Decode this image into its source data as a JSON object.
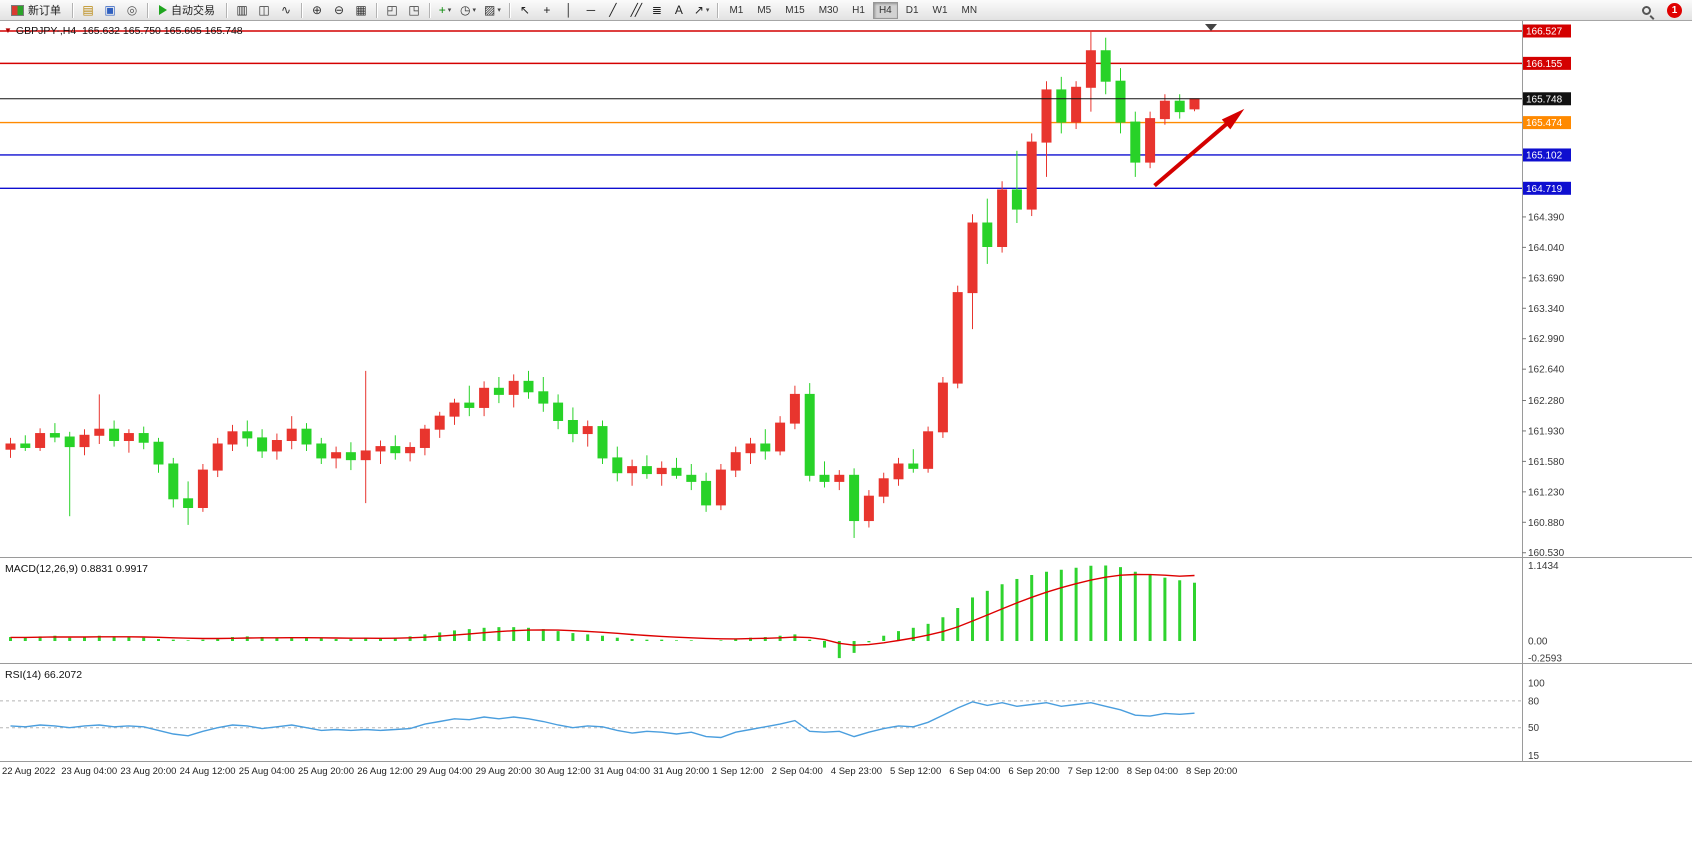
{
  "toolbar": {
    "new_order_label": "新订单",
    "autotrading_label": "自动交易",
    "notification_count": "1",
    "timeframes": [
      "M1",
      "M5",
      "M15",
      "M30",
      "H1",
      "H4",
      "D1",
      "W1",
      "MN"
    ],
    "active_timeframe": "H4",
    "groups": [
      {
        "items": [
          "new-order"
        ]
      },
      {
        "items": [
          "charts",
          "profiles",
          "refresh"
        ]
      },
      {
        "items": [
          "autotrading"
        ]
      },
      {
        "items": [
          "bar-chart",
          "candlestick-chart",
          "line-chart"
        ]
      },
      {
        "items": [
          "zoom-in",
          "zoom-out",
          "tile-windows"
        ]
      },
      {
        "items": [
          "arrange-windows",
          "cascade-windows"
        ]
      },
      {
        "items": [
          "indicators",
          "periods",
          "templates"
        ]
      },
      {
        "items": [
          "cursor",
          "crosshair",
          "vertical-line",
          "horizontal-line",
          "trendline",
          "equidistant-channel",
          "fibonacci",
          "text",
          "arrows"
        ]
      }
    ]
  },
  "chart": {
    "symbol_line": "GBPJPY-,H4  165.632 165.750 165.605 165.748"
  },
  "indicators": {
    "macd_label": "MACD(12,26,9) 0.8831 0.9917",
    "rsi_label": "RSI(14) 66.2072"
  },
  "chart_data": {
    "type": "candlestick",
    "symbol": "GBPJPY",
    "timeframe": "H4",
    "up_color": "#e8352e",
    "down_color": "#28d228",
    "ylim": [
      160.53,
      166.58
    ],
    "grid": false,
    "x_labels": [
      "22 Aug 2022",
      "23 Aug 04:00",
      "23 Aug 20:00",
      "24 Aug 12:00",
      "25 Aug 04:00",
      "25 Aug 20:00",
      "26 Aug 12:00",
      "29 Aug 04:00",
      "29 Aug 20:00",
      "30 Aug 12:00",
      "31 Aug 04:00",
      "31 Aug 20:00",
      "1 Sep 12:00",
      "2 Sep 04:00",
      "4 Sep 23:00",
      "5 Sep 12:00",
      "6 Sep 04:00",
      "6 Sep 20:00",
      "7 Sep 12:00",
      "8 Sep 04:00",
      "8 Sep 20:00"
    ],
    "y_axis_ticks": [
      164.39,
      164.04,
      163.69,
      163.34,
      162.99,
      162.64,
      162.28,
      161.93,
      161.58,
      161.23,
      160.88,
      160.53
    ],
    "levels": [
      {
        "price": 166.527,
        "line": "#d40000"
      },
      {
        "price": 166.155,
        "line": "#d40000"
      },
      {
        "price": 165.748,
        "line": "#111111",
        "current": true
      },
      {
        "price": 165.474,
        "line": "#ff8a00"
      },
      {
        "price": 165.102,
        "line": "#0f0fd0"
      },
      {
        "price": 164.719,
        "line": "#0f0fd0"
      }
    ],
    "candles_ohlc": [
      [
        161.72,
        161.85,
        161.62,
        161.78
      ],
      [
        161.78,
        161.88,
        161.7,
        161.74
      ],
      [
        161.74,
        161.96,
        161.7,
        161.9
      ],
      [
        161.9,
        162.02,
        161.8,
        161.86
      ],
      [
        161.86,
        161.92,
        160.95,
        161.75
      ],
      [
        161.75,
        161.95,
        161.65,
        161.88
      ],
      [
        161.88,
        162.35,
        161.78,
        161.95
      ],
      [
        161.95,
        162.05,
        161.75,
        161.82
      ],
      [
        161.82,
        161.95,
        161.68,
        161.9
      ],
      [
        161.9,
        161.98,
        161.72,
        161.8
      ],
      [
        161.8,
        161.85,
        161.45,
        161.55
      ],
      [
        161.55,
        161.62,
        161.05,
        161.15
      ],
      [
        161.15,
        161.35,
        160.85,
        161.05
      ],
      [
        161.05,
        161.55,
        161.0,
        161.48
      ],
      [
        161.48,
        161.85,
        161.4,
        161.78
      ],
      [
        161.78,
        162.0,
        161.7,
        161.92
      ],
      [
        161.92,
        162.05,
        161.75,
        161.85
      ],
      [
        161.85,
        161.95,
        161.62,
        161.7
      ],
      [
        161.7,
        161.9,
        161.6,
        161.82
      ],
      [
        161.82,
        162.1,
        161.72,
        161.95
      ],
      [
        161.95,
        162.02,
        161.7,
        161.78
      ],
      [
        161.78,
        161.85,
        161.55,
        161.62
      ],
      [
        161.62,
        161.75,
        161.5,
        161.68
      ],
      [
        161.68,
        161.8,
        161.48,
        161.6
      ],
      [
        161.6,
        162.62,
        161.1,
        161.7
      ],
      [
        161.7,
        161.82,
        161.55,
        161.75
      ],
      [
        161.75,
        161.88,
        161.6,
        161.68
      ],
      [
        161.68,
        161.8,
        161.58,
        161.74
      ],
      [
        161.74,
        162.0,
        161.65,
        161.95
      ],
      [
        161.95,
        162.15,
        161.85,
        162.1
      ],
      [
        162.1,
        162.3,
        162.0,
        162.25
      ],
      [
        162.25,
        162.45,
        162.1,
        162.2
      ],
      [
        162.2,
        162.5,
        162.1,
        162.42
      ],
      [
        162.42,
        162.55,
        162.25,
        162.35
      ],
      [
        162.35,
        162.58,
        162.2,
        162.5
      ],
      [
        162.5,
        162.62,
        162.3,
        162.38
      ],
      [
        162.38,
        162.55,
        162.15,
        162.25
      ],
      [
        162.25,
        162.35,
        161.95,
        162.05
      ],
      [
        162.05,
        162.2,
        161.8,
        161.9
      ],
      [
        161.9,
        162.05,
        161.75,
        161.98
      ],
      [
        161.98,
        162.05,
        161.55,
        161.62
      ],
      [
        161.62,
        161.75,
        161.35,
        161.45
      ],
      [
        161.45,
        161.6,
        161.3,
        161.52
      ],
      [
        161.52,
        161.65,
        161.38,
        161.44
      ],
      [
        161.44,
        161.58,
        161.3,
        161.5
      ],
      [
        161.5,
        161.62,
        161.38,
        161.42
      ],
      [
        161.42,
        161.55,
        161.25,
        161.35
      ],
      [
        161.35,
        161.45,
        161.0,
        161.08
      ],
      [
        161.08,
        161.55,
        161.02,
        161.48
      ],
      [
        161.48,
        161.75,
        161.4,
        161.68
      ],
      [
        161.68,
        161.85,
        161.55,
        161.78
      ],
      [
        161.78,
        161.95,
        161.6,
        161.7
      ],
      [
        161.7,
        162.1,
        161.65,
        162.02
      ],
      [
        162.02,
        162.45,
        161.95,
        162.35
      ],
      [
        162.35,
        162.48,
        161.35,
        161.42
      ],
      [
        161.42,
        161.58,
        161.28,
        161.35
      ],
      [
        161.35,
        161.48,
        161.25,
        161.42
      ],
      [
        161.42,
        161.5,
        160.7,
        160.9
      ],
      [
        160.9,
        161.25,
        160.82,
        161.18
      ],
      [
        161.18,
        161.45,
        161.1,
        161.38
      ],
      [
        161.38,
        161.62,
        161.3,
        161.55
      ],
      [
        161.55,
        161.72,
        161.45,
        161.5
      ],
      [
        161.5,
        161.98,
        161.45,
        161.92
      ],
      [
        161.92,
        162.55,
        161.85,
        162.48
      ],
      [
        162.48,
        163.6,
        162.42,
        163.52
      ],
      [
        163.52,
        164.42,
        163.1,
        164.32
      ],
      [
        164.32,
        164.6,
        163.85,
        164.05
      ],
      [
        164.05,
        164.8,
        163.98,
        164.7
      ],
      [
        164.7,
        165.15,
        164.32,
        164.48
      ],
      [
        164.48,
        165.35,
        164.4,
        165.25
      ],
      [
        165.25,
        165.95,
        164.85,
        165.85
      ],
      [
        165.85,
        166.0,
        165.35,
        165.48
      ],
      [
        165.48,
        165.95,
        165.4,
        165.88
      ],
      [
        165.88,
        166.53,
        165.6,
        166.3
      ],
      [
        166.3,
        166.45,
        165.8,
        165.95
      ],
      [
        165.95,
        166.1,
        165.35,
        165.48
      ],
      [
        165.48,
        165.6,
        164.85,
        165.02
      ],
      [
        165.02,
        165.6,
        164.95,
        165.52
      ],
      [
        165.52,
        165.8,
        165.45,
        165.72
      ],
      [
        165.72,
        165.8,
        165.52,
        165.6
      ],
      [
        165.632,
        165.75,
        165.605,
        165.748
      ]
    ],
    "subcharts": [
      {
        "type": "macd-histogram",
        "label": "MACD(12,26,9)",
        "value": 0.8831,
        "signal_value": 0.9917,
        "histogram_color": "#2fd32f",
        "signal_color": "#dd0000",
        "scale_labels": [
          "1.1434",
          "0.00",
          "-0.2593"
        ],
        "values": [
          0.06,
          0.05,
          0.07,
          0.08,
          0.05,
          0.06,
          0.08,
          0.07,
          0.06,
          0.05,
          0.03,
          0.02,
          0.01,
          0.02,
          0.04,
          0.06,
          0.07,
          0.06,
          0.05,
          0.06,
          0.05,
          0.04,
          0.03,
          0.03,
          0.04,
          0.04,
          0.05,
          0.07,
          0.1,
          0.13,
          0.16,
          0.18,
          0.2,
          0.21,
          0.21,
          0.2,
          0.18,
          0.15,
          0.12,
          0.1,
          0.08,
          0.05,
          0.03,
          0.02,
          0.02,
          0.01,
          0.01,
          0.0,
          0.01,
          0.03,
          0.05,
          0.06,
          0.08,
          0.1,
          0.02,
          -0.1,
          -0.2593,
          -0.18,
          -0.02,
          0.08,
          0.15,
          0.2,
          0.26,
          0.36,
          0.5,
          0.66,
          0.76,
          0.86,
          0.94,
          1.0,
          1.05,
          1.08,
          1.11,
          1.14,
          1.1434,
          1.12,
          1.05,
          1.0,
          0.96,
          0.92,
          0.8831
        ],
        "signal": [
          0.055,
          0.055,
          0.058,
          0.062,
          0.06,
          0.06,
          0.063,
          0.064,
          0.063,
          0.061,
          0.056,
          0.049,
          0.042,
          0.038,
          0.038,
          0.041,
          0.046,
          0.048,
          0.048,
          0.05,
          0.05,
          0.048,
          0.045,
          0.042,
          0.042,
          0.041,
          0.043,
          0.048,
          0.058,
          0.072,
          0.09,
          0.108,
          0.126,
          0.143,
          0.156,
          0.165,
          0.168,
          0.165,
          0.156,
          0.145,
          0.132,
          0.116,
          0.099,
          0.083,
          0.07,
          0.058,
          0.048,
          0.039,
          0.033,
          0.032,
          0.036,
          0.041,
          0.049,
          0.059,
          0.051,
          0.021,
          -0.035,
          -0.064,
          -0.055,
          -0.028,
          0.008,
          0.046,
          0.089,
          0.143,
          0.214,
          0.303,
          0.394,
          0.487,
          0.578,
          0.662,
          0.74,
          0.808,
          0.868,
          0.922,
          0.9667,
          0.9974,
          1.0079,
          1.0063,
          0.997,
          0.9816,
          0.9917
        ]
      },
      {
        "type": "line",
        "label": "RSI(14)",
        "value": 66.2072,
        "line_color": "#4a9ede",
        "levels": [
          80,
          50
        ],
        "scale_labels": [
          "100",
          "80",
          "50",
          "15"
        ],
        "values": [
          52,
          51,
          53,
          52,
          50,
          52,
          53,
          51,
          52,
          51,
          47,
          43,
          41,
          46,
          50,
          53,
          52,
          49,
          51,
          53,
          50,
          47,
          48,
          47,
          48,
          47,
          48,
          49,
          54,
          57,
          60,
          59,
          62,
          60,
          62,
          60,
          57,
          53,
          50,
          52,
          51,
          47,
          44,
          46,
          45,
          43,
          45,
          40,
          39,
          45,
          48,
          51,
          54,
          58,
          46,
          45,
          46,
          40,
          45,
          49,
          52,
          51,
          56,
          64,
          72,
          79,
          75,
          78,
          74,
          76,
          78,
          74,
          76,
          78,
          74,
          70,
          64,
          63,
          66,
          65,
          66.2
        ]
      }
    ],
    "annotations": [
      {
        "type": "arrow",
        "from": {
          "bar": 77.3,
          "price": 164.75
        },
        "to": {
          "bar": 82.8,
          "price": 165.55
        },
        "color": "#d40000"
      }
    ]
  }
}
